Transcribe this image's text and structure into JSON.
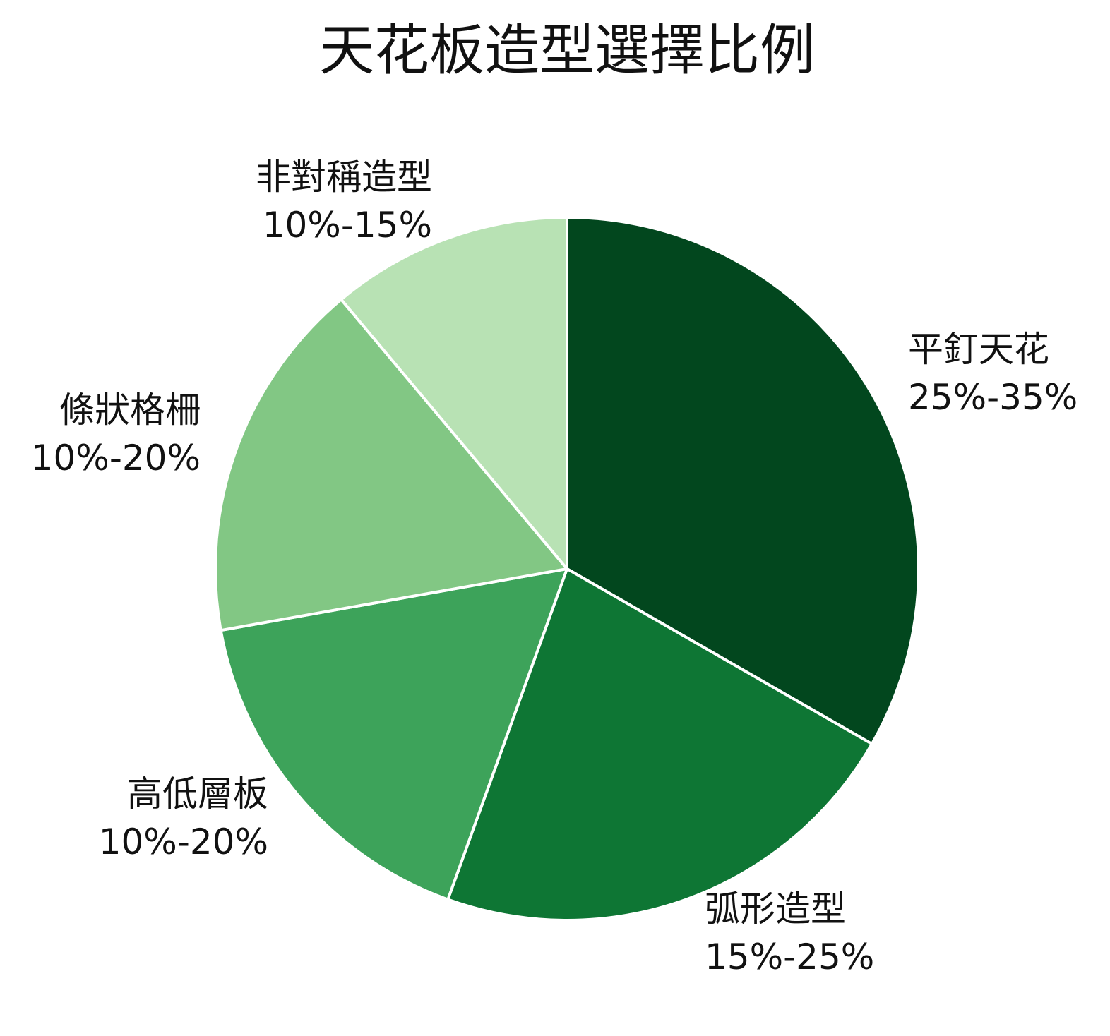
{
  "chart_data": {
    "type": "pie",
    "title": "天花板造型選擇比例",
    "start_angle_deg": 0,
    "direction": "clockwise",
    "colors": [
      "#02471E",
      "#0E7634",
      "#3DA35A",
      "#82C784",
      "#B8E2B4"
    ],
    "slice_border_color": "#ffffff",
    "slices": [
      {
        "label": "平釘天花",
        "range_text": "25%-35%",
        "value": 33.3
      },
      {
        "label": "弧形造型",
        "range_text": "15%-25%",
        "value": 22.2
      },
      {
        "label": "高低層板",
        "range_text": "10%-20%",
        "value": 16.7
      },
      {
        "label": "條狀格柵",
        "range_text": "10%-20%",
        "value": 16.7
      },
      {
        "label": "非對稱造型",
        "range_text": "10%-15%",
        "value": 11.1
      }
    ]
  }
}
